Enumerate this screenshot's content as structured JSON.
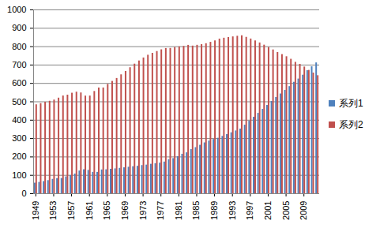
{
  "chart_data": {
    "type": "bar",
    "categories": [
      "1949",
      null,
      null,
      null,
      "1953",
      null,
      null,
      null,
      "1957",
      null,
      null,
      null,
      "1961",
      null,
      null,
      null,
      "1965",
      null,
      null,
      null,
      "1969",
      null,
      null,
      null,
      "1973",
      null,
      null,
      null,
      "1977",
      null,
      null,
      null,
      "1981",
      null,
      null,
      null,
      "1985",
      null,
      null,
      null,
      "1989",
      null,
      null,
      null,
      "1993",
      null,
      null,
      null,
      "1997",
      null,
      null,
      null,
      "2001",
      null,
      null,
      null,
      "2005",
      null,
      null,
      null,
      "2009",
      null,
      null,
      null
    ],
    "series": [
      {
        "name": "系列1",
        "color": "#4f81bd",
        "values": [
          57.7,
          61.7,
          66.3,
          71.6,
          78.3,
          82.5,
          82.9,
          91.9,
          99.5,
          107.2,
          123.7,
          130.7,
          127.1,
          116.6,
          116.5,
          129.5,
          130.5,
          133.1,
          135.5,
          138.4,
          141.2,
          144.2,
          147.1,
          149.4,
          153.5,
          156.0,
          160.3,
          163.4,
          166.7,
          172.5,
          185.0,
          191.4,
          201.7,
          214.8,
          222.7,
          240.2,
          250.9,
          263.7,
          276.7,
          286.6,
          295.4,
          302.0,
          312.0,
          321.8,
          331.7,
          341.7,
          351.7,
          373.0,
          394.5,
          416.1,
          437.5,
          459.1,
          480.6,
          502.1,
          523.8,
          542.8,
          562.1,
          582.9,
          606.3,
          624.0,
          645.1,
          669.8,
          690.8,
          711.8
        ]
      },
      {
        "name": "系列2",
        "color": "#c0504d",
        "values": [
          484.0,
          490.3,
          497.7,
          503.2,
          509.7,
          520.2,
          531.8,
          536.4,
          547.0,
          552.7,
          548.4,
          531.3,
          531.5,
          556.4,
          575.3,
          575.5,
          594.9,
          611.2,
          627.2,
          647.0,
          665.5,
          685.7,
          705.2,
          722.4,
          738.7,
          753.6,
          763.9,
          773.8,
          783.1,
          790.1,
          790.5,
          795.7,
          799.0,
          801.7,
          807.3,
          803.4,
          807.6,
          811.4,
          816.3,
          823.7,
          831.6,
          841.4,
          846.2,
          850.0,
          853.4,
          856.8,
          859.5,
          850.9,
          841.8,
          831.5,
          820.4,
          808.4,
          795.6,
          782.4,
          768.5,
          757.1,
          745.4,
          731.6,
          715.0,
          704.0,
          689.4,
          671.1,
          656.6,
          642.2
        ]
      }
    ],
    "ylim": [
      0,
      1000
    ],
    "yticks": [
      0,
      100,
      200,
      300,
      400,
      500,
      600,
      700,
      800,
      900,
      1000
    ],
    "grid": true,
    "legend": "right"
  }
}
